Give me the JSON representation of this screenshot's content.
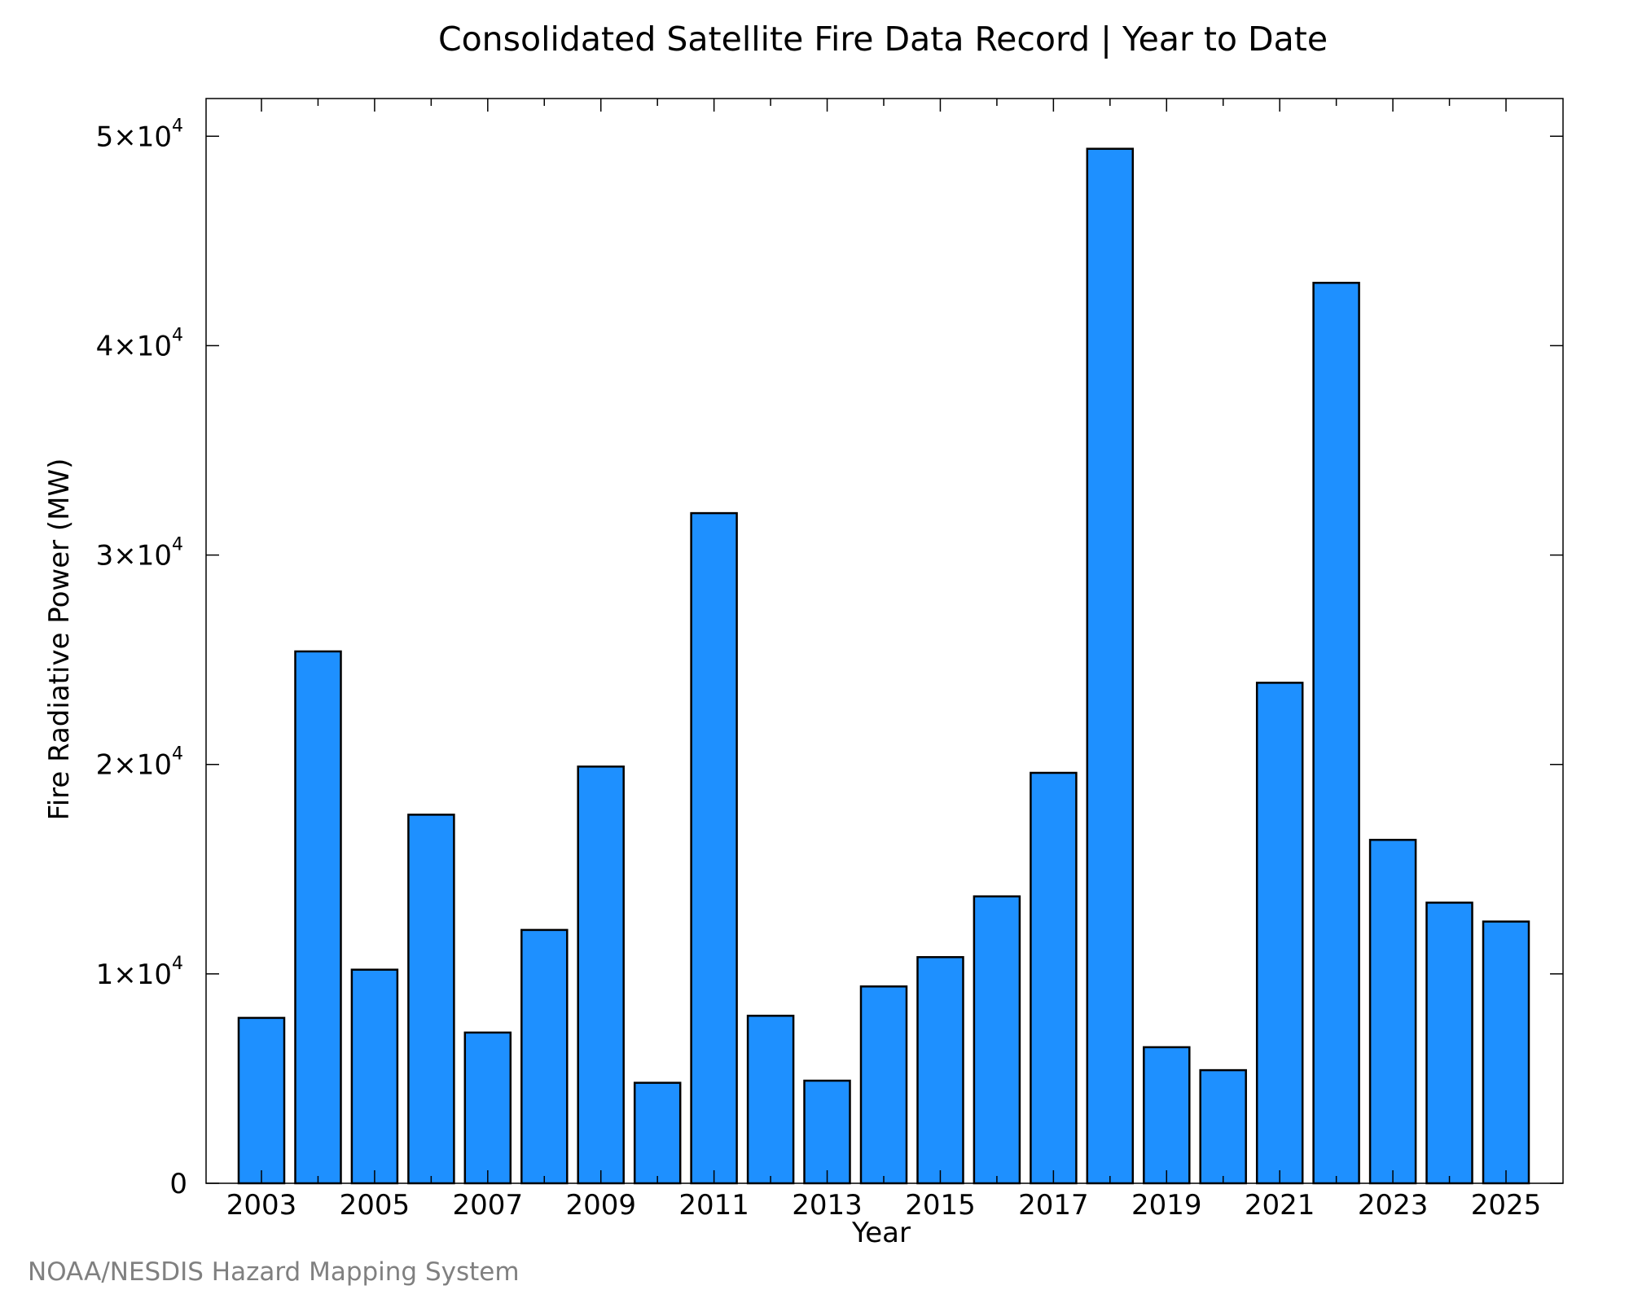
{
  "chart_data": {
    "type": "bar",
    "title": "Consolidated Satellite Fire Data Record | Year to Date",
    "xlabel": "Year",
    "ylabel": "Fire Radiative Power (MW)",
    "categories": [
      "2003",
      "2004",
      "2005",
      "2006",
      "2007",
      "2008",
      "2009",
      "2010",
      "2011",
      "2012",
      "2013",
      "2014",
      "2015",
      "2016",
      "2017",
      "2018",
      "2019",
      "2020",
      "2021",
      "2022",
      "2023",
      "2024",
      "2025"
    ],
    "values": [
      7900,
      25400,
      10200,
      17600,
      7200,
      12100,
      19900,
      4800,
      32000,
      8000,
      4900,
      9400,
      10800,
      13700,
      19600,
      49400,
      6500,
      5400,
      23900,
      43000,
      16400,
      13400,
      12500
    ],
    "ylim": [
      0,
      51800
    ],
    "y_ticks": [
      {
        "value": 0,
        "label": "0",
        "base": "",
        "exp": ""
      },
      {
        "value": 10000,
        "label": "",
        "base": "1×10",
        "exp": "4"
      },
      {
        "value": 20000,
        "label": "",
        "base": "2×10",
        "exp": "4"
      },
      {
        "value": 30000,
        "label": "",
        "base": "3×10",
        "exp": "4"
      },
      {
        "value": 40000,
        "label": "",
        "base": "4×10",
        "exp": "4"
      },
      {
        "value": 50000,
        "label": "",
        "base": "5×10",
        "exp": "4"
      }
    ],
    "x_tick_labels": [
      "2003",
      "2005",
      "2007",
      "2009",
      "2011",
      "2013",
      "2015",
      "2017",
      "2019",
      "2021",
      "2023",
      "2025"
    ],
    "bar_color": "#1e90ff",
    "bar_edge_color": "#000000",
    "grid": false,
    "legend": "none"
  },
  "credit": "NOAA/NESDIS Hazard Mapping System"
}
